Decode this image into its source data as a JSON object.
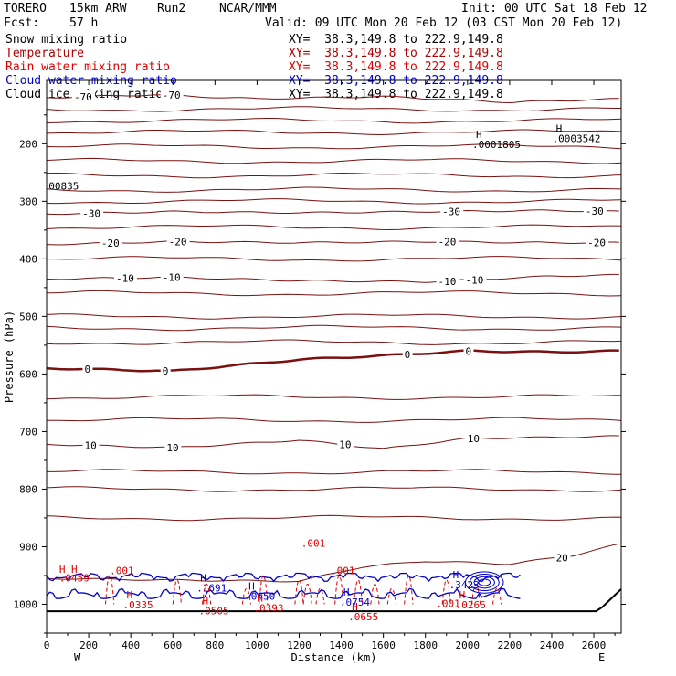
{
  "header": {
    "model": "TORERO",
    "resolution": "15km ARW",
    "run": "Run2",
    "org": "NCAR/MMM",
    "init": "Init: 00 UTC Sat 18 Feb 12",
    "fcst_label": "Fcst:",
    "fcst_value": "57 h",
    "valid": "Valid: 09 UTC Mon 20 Feb 12 (03 CST Mon 20 Feb 12)"
  },
  "legend": [
    {
      "name": "Snow mixing ratio",
      "xy": "XY=  38.3,149.8 to 222.9,149.8",
      "color": "#000000"
    },
    {
      "name": "Temperature",
      "xy": "XY=  38.3,149.8 to 222.9,149.8",
      "color": "#800000"
    },
    {
      "name": "Rain water mixing ratio",
      "xy": "XY=  38.3,149.8 to 222.9,149.8",
      "color": "#e00000"
    },
    {
      "name": "Cloud water mixing ratio",
      "xy": "XY=  38.3,149.8 to 222.9,149.8",
      "color": "#0000cc"
    },
    {
      "name": "Cloud ice mixing ratio",
      "xy": "XY=  38.3,149.8 to 222.9,149.8",
      "color": "#000000"
    }
  ],
  "chart_data": {
    "type": "line",
    "xlabel": "Distance (km)",
    "ylabel": "Pressure (hPa)",
    "xlim": [
      0,
      2730
    ],
    "ylim": [
      1050,
      90
    ],
    "x_ticks": [
      0,
      200,
      400,
      600,
      800,
      1000,
      1200,
      1400,
      1600,
      1800,
      2000,
      2200,
      2400,
      2600
    ],
    "y_ticks": [
      200,
      300,
      400,
      500,
      600,
      700,
      800,
      900,
      1000
    ],
    "x_end_labels": {
      "left": "W",
      "right": "E"
    },
    "temperature_isotherms": [
      {
        "label": "-70",
        "points": [
          [
            0,
            120
          ],
          [
            500,
            115
          ],
          [
            1000,
            122
          ],
          [
            1600,
            118
          ],
          [
            2200,
            128
          ],
          [
            2730,
            122
          ]
        ],
        "label_x": [
          130,
          550
        ]
      },
      {
        "label": "-30",
        "points": [
          [
            0,
            322
          ],
          [
            600,
            318
          ],
          [
            1200,
            320
          ],
          [
            1800,
            318
          ],
          [
            2400,
            316
          ],
          [
            2730,
            318
          ]
        ],
        "label_x": [
          170,
          1880,
          2560
        ]
      },
      {
        "label": "-20",
        "points": [
          [
            0,
            375
          ],
          [
            600,
            370
          ],
          [
            1200,
            372
          ],
          [
            1800,
            370
          ],
          [
            2400,
            372
          ],
          [
            2730,
            372
          ]
        ],
        "label_x": [
          260,
          580,
          1860,
          2570
        ]
      },
      {
        "label": "-10",
        "points": [
          [
            0,
            435
          ],
          [
            600,
            432
          ],
          [
            1200,
            438
          ],
          [
            1800,
            440
          ],
          [
            2400,
            430
          ],
          [
            2730,
            428
          ]
        ],
        "label_x": [
          330,
          550,
          1860,
          1990
        ]
      },
      {
        "label": "0",
        "points": [
          [
            0,
            590
          ],
          [
            600,
            595
          ],
          [
            1200,
            575
          ],
          [
            1600,
            568
          ],
          [
            2000,
            560
          ],
          [
            2400,
            562
          ],
          [
            2730,
            560
          ]
        ],
        "label_x": [
          180,
          550,
          1700,
          1990
        ]
      },
      {
        "label": "10",
        "points": [
          [
            0,
            722
          ],
          [
            600,
            728
          ],
          [
            1200,
            715
          ],
          [
            1600,
            730
          ],
          [
            2000,
            712
          ],
          [
            2400,
            710
          ],
          [
            2730,
            708
          ]
        ],
        "label_x": [
          180,
          570,
          1390,
          2000
        ]
      },
      {
        "label": "20",
        "points": [
          [
            0,
            955
          ],
          [
            600,
            958
          ],
          [
            1200,
            960
          ],
          [
            1500,
            935
          ],
          [
            1800,
            925
          ],
          [
            2200,
            930
          ],
          [
            2500,
            915
          ],
          [
            2730,
            895
          ]
        ],
        "label_x": [
          2420
        ]
      }
    ],
    "h_markers": [
      {
        "label": "H",
        "value": ".0001805",
        "x": 2040,
        "p": 190,
        "color": "#000000"
      },
      {
        "label": "H",
        "value": ".0003542",
        "x": 2420,
        "p": 180,
        "color": "#000000"
      },
      {
        "label": "H",
        "value": ".1691",
        "x": 730,
        "p": 960,
        "color": "#0000cc"
      },
      {
        "label": "H",
        "value": ".0650",
        "x": 960,
        "p": 975,
        "color": "#0000cc"
      },
      {
        "label": "H",
        "value": ".0754",
        "x": 1410,
        "p": 985,
        "color": "#0000cc"
      },
      {
        "label": "H",
        "value": ".3423",
        "x": 1930,
        "p": 955,
        "color": "#0000cc"
      },
      {
        "label": "H",
        "value": ".0335",
        "x": 380,
        "p": 990,
        "color": "#e00000"
      },
      {
        "label": "H",
        "value": ".0505",
        "x": 740,
        "p": 1000,
        "color": "#e00000"
      },
      {
        "label": "H",
        "value": ".0393",
        "x": 1000,
        "p": 995,
        "color": "#e00000"
      },
      {
        "label": "H",
        "value": ".0655",
        "x": 1450,
        "p": 1010,
        "color": "#e00000"
      },
      {
        "label": "H",
        "value": ".0266",
        "x": 1960,
        "p": 990,
        "color": "#e00000"
      }
    ],
    "misc_labels": [
      {
        "text": "00835",
        "x": 10,
        "p": 280,
        "color": "#000000"
      },
      {
        "text": ".001",
        "x": 1210,
        "p": 900,
        "color": "#e00000"
      },
      {
        "text": ".001",
        "x": 300,
        "p": 948,
        "color": "#e00000"
      },
      {
        "text": ".001",
        "x": 1350,
        "p": 948,
        "color": "#e00000"
      },
      {
        "text": ".001",
        "x": 1850,
        "p": 1005,
        "color": "#e00000"
      },
      {
        "text": "H H",
        "x": 60,
        "p": 945,
        "color": "#e00000"
      },
      {
        "text": ".0459",
        "x": 60,
        "p": 960,
        "color": "#e00000"
      }
    ],
    "title": ""
  }
}
